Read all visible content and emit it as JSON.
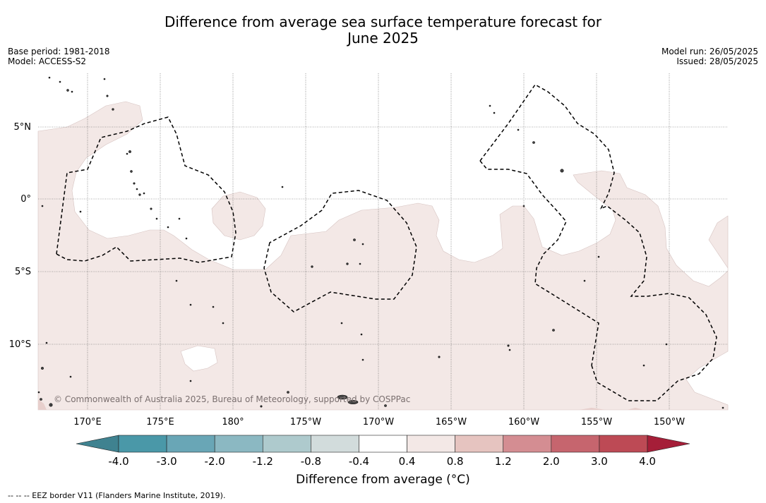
{
  "title": {
    "line1": "Difference from average sea surface temperature forecast for",
    "line2": "June 2025"
  },
  "meta": {
    "base_period": "Base period: 1981-2018",
    "model": "Model: ACCESS-S2",
    "model_run": "Model run: 26/05/2025",
    "issued": "Issued: 28/05/2025"
  },
  "map": {
    "lat_ticks": [
      "5°N",
      "0°",
      "5°S",
      "10°S"
    ],
    "lon_ticks": [
      "170°E",
      "175°E",
      "180°",
      "175°W",
      "170°W",
      "165°W",
      "160°W",
      "155°W",
      "150°W"
    ],
    "copyright": "© Commonwealth of Australia 2025, Bureau of Meteorology, supported by COSPPac",
    "dominant_anomaly_color": "#f3e8e6",
    "island_color": "#444444",
    "eez_border_style": "dashed"
  },
  "colorbar": {
    "ticks": [
      "-4.0",
      "-3.0",
      "-2.0",
      "-1.2",
      "-0.8",
      "-0.4",
      "0.4",
      "0.8",
      "1.2",
      "2.0",
      "3.0",
      "4.0"
    ],
    "colors": [
      "#4a98a8",
      "#69a6b6",
      "#8bb8c2",
      "#aecacd",
      "#d2dcdc",
      "#ffffff",
      "#f3e8e6",
      "#e6c4c0",
      "#d48d92",
      "#c6656e",
      "#bd4a55"
    ],
    "under_color": "#3f8290",
    "over_color": "#a51e38",
    "label": "Difference from average (°C)"
  },
  "footnote": "--  --  -- EEZ border V11 (Flanders Marine Institute, 2019)."
}
